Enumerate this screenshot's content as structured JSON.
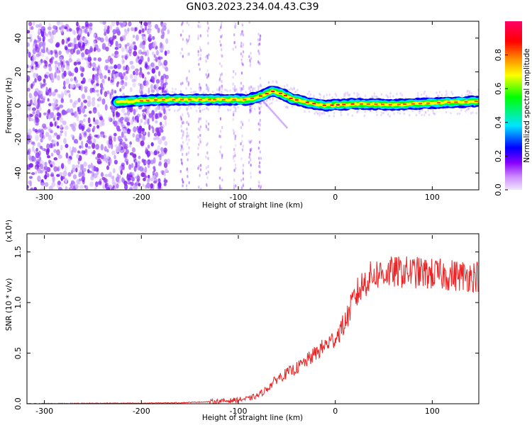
{
  "title": "GN03.2023.234.04.43.C39",
  "chart_data": [
    {
      "type": "heatmap",
      "xlabel": "Height of straight line (km)",
      "ylabel": "Frequency (Hz)",
      "xlim": [
        -318,
        148
      ],
      "ylim": [
        -50,
        50
      ],
      "x_ticks": [
        -300,
        -200,
        -100,
        0,
        100
      ],
      "y_ticks": [
        -40,
        -20,
        0,
        20,
        40
      ],
      "colorbar": {
        "label": "Normalized spectral amplitude",
        "range": [
          0.0,
          1.0
        ],
        "ticks": [
          0.0,
          0.2,
          0.4,
          0.6,
          0.8
        ],
        "colors": [
          "#f0e6ff",
          "#8800ff",
          "#0000ff",
          "#00e5ff",
          "#00ff00",
          "#ffff00",
          "#ff8800",
          "#ff0000",
          "#ff0066"
        ]
      },
      "ridge": {
        "description_x": [
          -225,
          -180,
          -120,
          -90,
          -75,
          -65,
          -55,
          -45,
          -30,
          -10,
          20,
          60,
          100,
          148
        ],
        "frequency": [
          2,
          3.5,
          3.5,
          3.5,
          6,
          8.5,
          7,
          4,
          2,
          0,
          1,
          0.5,
          1.5,
          2.5
        ]
      }
    },
    {
      "type": "line",
      "xlabel": "Height of straight line (km)",
      "ylabel": "SNR (10 * v/v)",
      "scale_label": "(x10⁴)",
      "xlim": [
        -318,
        148
      ],
      "ylim": [
        0,
        1.68
      ],
      "x_ticks": [
        -300,
        -200,
        -100,
        0,
        100
      ],
      "y_ticks": [
        0.0,
        0.5,
        1.0,
        1.5
      ],
      "series": [
        {
          "color": "#ee2222",
          "x": [
            -318,
            -250,
            -200,
            -160,
            -130,
            -110,
            -90,
            -80,
            -70,
            -60,
            -50,
            -40,
            -30,
            -20,
            -10,
            0,
            10,
            20,
            30,
            40,
            60,
            80,
            100,
            120,
            148
          ],
          "y": [
            0.0,
            0.005,
            0.005,
            0.01,
            0.02,
            0.03,
            0.05,
            0.08,
            0.15,
            0.25,
            0.3,
            0.35,
            0.42,
            0.5,
            0.58,
            0.65,
            0.8,
            1.05,
            1.2,
            1.28,
            1.3,
            1.3,
            1.28,
            1.27,
            1.26
          ]
        }
      ]
    }
  ]
}
